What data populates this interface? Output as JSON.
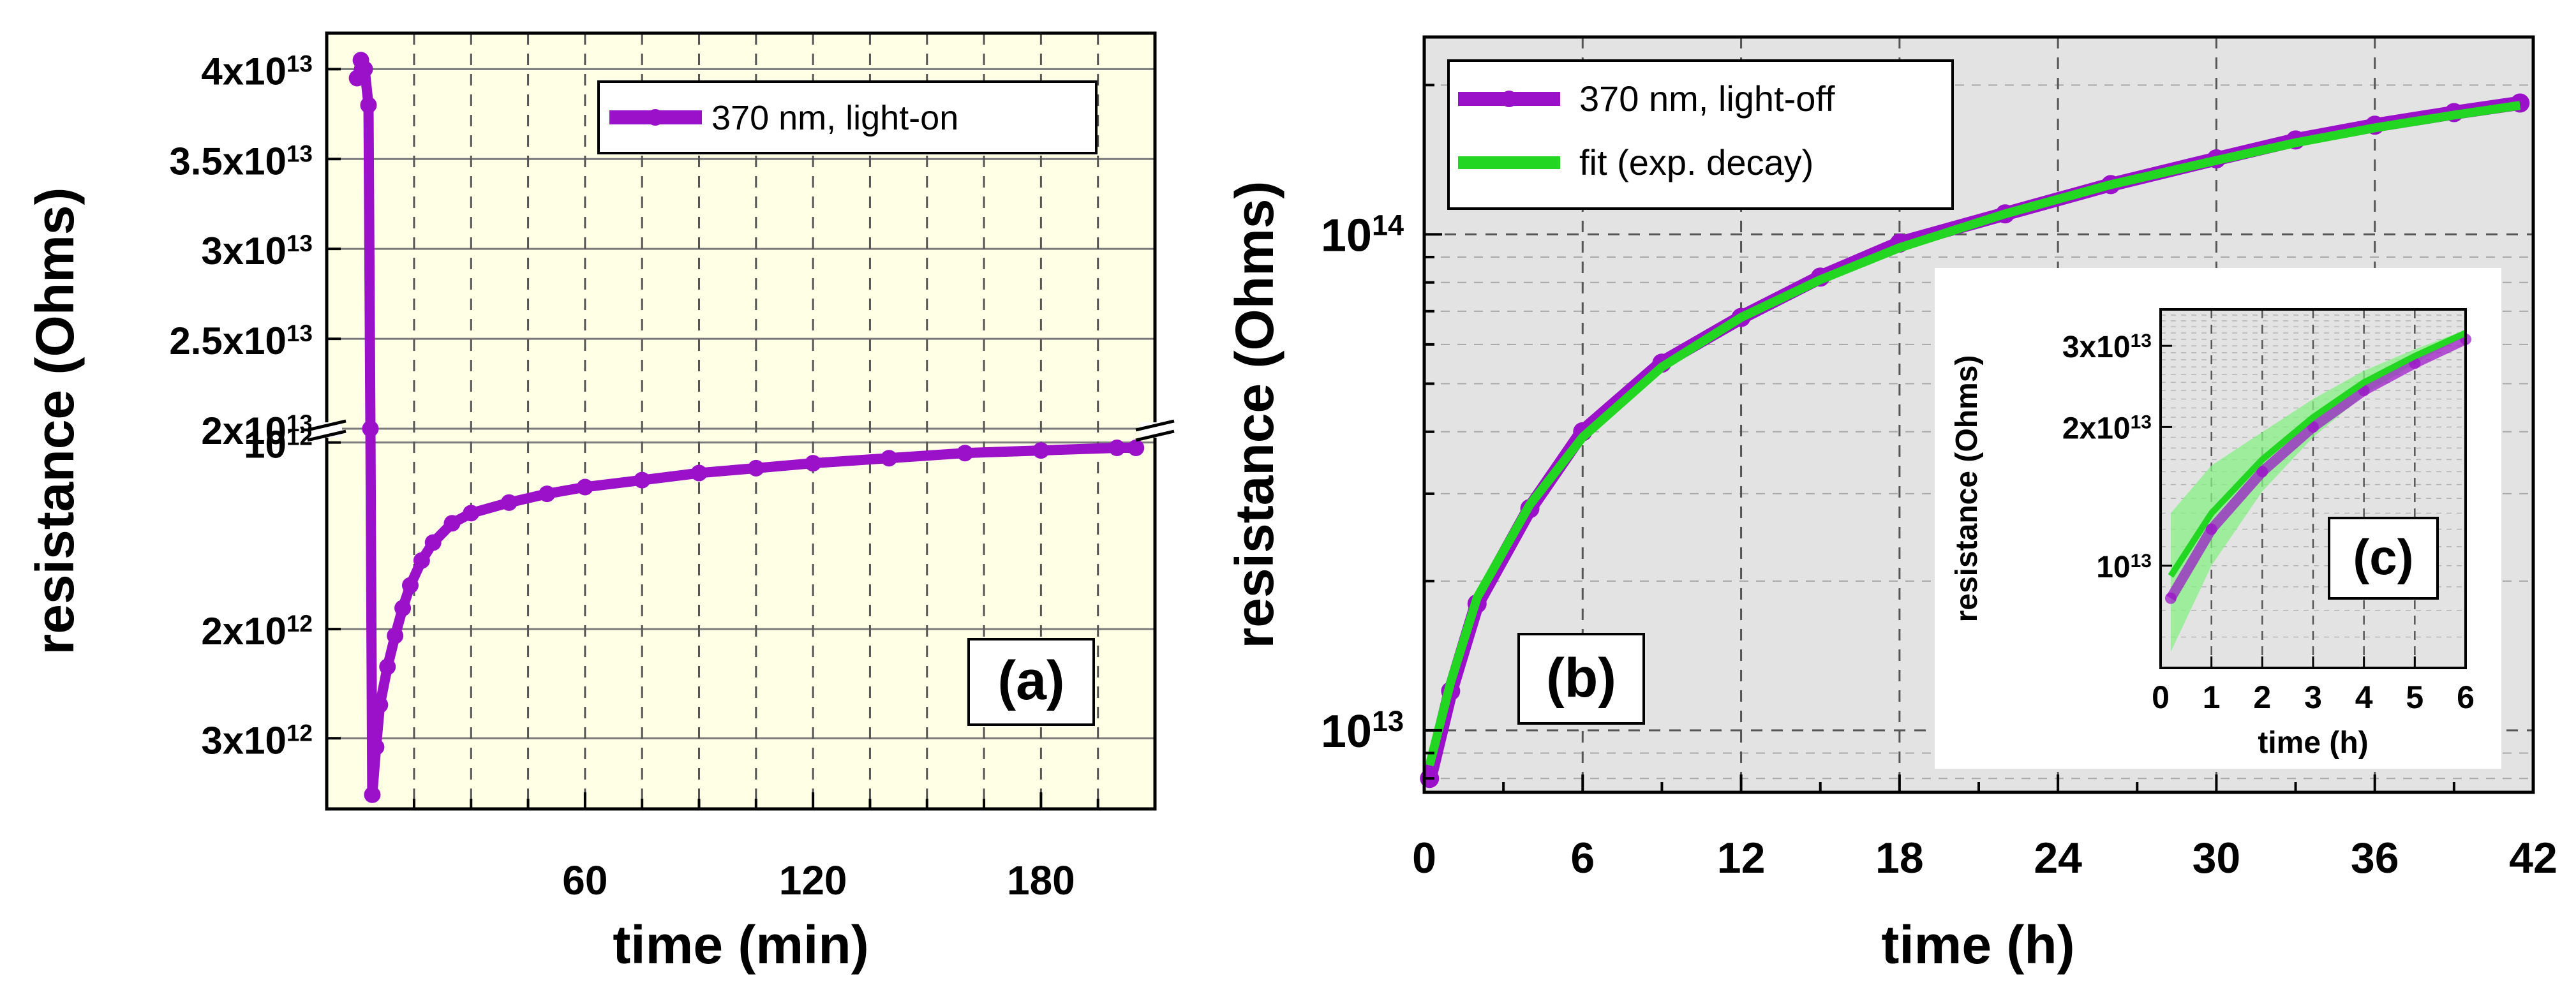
{
  "colors": {
    "data": "#9B10C9",
    "fit": "#22D622",
    "band": "#86F086",
    "bg_a": "#FFFFE5",
    "bg_b": "#E3E3E3",
    "inset_bg": "#FFFFFF"
  },
  "chart_data": [
    {
      "id": "a",
      "type": "scatter",
      "panel_label": "(a)",
      "xlabel": "time (min)",
      "ylabel": "resistance (Ohms)",
      "y_scale": "log, broken axis",
      "xlim": [
        -8,
        210
      ],
      "upper_ylim": [
        20000000000000,
        42000000000000
      ],
      "lower_ylim": [
        950000000000,
        3900000000000
      ],
      "x_ticks": [
        60,
        120,
        180
      ],
      "x_tick_labels": [
        "60",
        "120",
        "180"
      ],
      "upper_ticks": [
        {
          "value": 40000000000000,
          "mant": "4x10",
          "exp": "13"
        },
        {
          "value": 35000000000000,
          "mant": "3.5x10",
          "exp": "13"
        },
        {
          "value": 30000000000000,
          "mant": "3x10",
          "exp": "13"
        },
        {
          "value": 25000000000000,
          "mant": "2.5x10",
          "exp": "13"
        },
        {
          "value": 20000000000000,
          "mant": "2x10",
          "exp": "13"
        }
      ],
      "lower_ticks": [
        {
          "value": 3000000000000,
          "mant": "3x10",
          "exp": "12"
        },
        {
          "value": 2000000000000,
          "mant": "2x10",
          "exp": "12"
        },
        {
          "value": 1000000000000,
          "mant": "10",
          "exp": "12"
        }
      ],
      "legend": [
        {
          "label": "370 nm, light-on",
          "style": "line+marker"
        }
      ],
      "legend_position": "top-right",
      "series": [
        {
          "name": "370 nm, light-on",
          "x": [
            0,
            1,
            2,
            3,
            3.5,
            4,
            5,
            6,
            8,
            10,
            12,
            14,
            17,
            20,
            25,
            30,
            40,
            50,
            60,
            75,
            90,
            105,
            120,
            140,
            160,
            180,
            200,
            205
          ],
          "y": [
            39500000000000,
            40500000000000,
            40000000000000,
            38000000000000,
            20000000000000,
            3700000000000,
            3100000000000,
            2650000000000,
            2300000000000,
            2050000000000,
            1850000000000,
            1700000000000,
            1550000000000,
            1450000000000,
            1350000000000,
            1300000000000,
            1250000000000,
            1210000000000,
            1180000000000,
            1150000000000,
            1120000000000,
            1100000000000,
            1080000000000,
            1060000000000,
            1040000000000,
            1030000000000,
            1020000000000,
            1020000000000
          ]
        }
      ]
    },
    {
      "id": "b",
      "type": "line",
      "panel_label": "(b)",
      "xlabel": "time (h)",
      "ylabel": "resistance (Ohms)",
      "y_scale": "log",
      "xlim": [
        0,
        42
      ],
      "ylim": [
        7500000000000,
        250000000000000
      ],
      "x_ticks": [
        0,
        6,
        12,
        18,
        24,
        30,
        36,
        42
      ],
      "x_tick_labels": [
        "0",
        "6",
        "12",
        "18",
        "24",
        "30",
        "36",
        "42"
      ],
      "y_ticks": [
        {
          "value": 10000000000000,
          "mant": "10",
          "exp": "13"
        },
        {
          "value": 100000000000000,
          "mant": "10",
          "exp": "14"
        }
      ],
      "legend": [
        {
          "label": "370 nm, light-off",
          "style": "line+marker"
        },
        {
          "label": "fit (exp. decay)",
          "style": "line"
        }
      ],
      "legend_position": "top-left",
      "series": [
        {
          "name": "370 nm, light-off",
          "x": [
            0.2,
            1,
            2,
            4,
            6,
            9,
            12,
            15,
            18,
            22,
            26,
            30,
            33,
            36,
            39,
            41.5
          ],
          "y": [
            8000000000000,
            12000000000000,
            18000000000000,
            28000000000000,
            40000000000000,
            55000000000000,
            68000000000000,
            82000000000000,
            96000000000000,
            110000000000000,
            126000000000000,
            142000000000000,
            155000000000000,
            166000000000000,
            176000000000000,
            184000000000000
          ]
        },
        {
          "name": "fit (exp. decay)",
          "x": [
            0.2,
            1,
            2,
            4,
            6,
            9,
            12,
            15,
            18,
            22,
            26,
            30,
            33,
            36,
            39,
            41.5
          ],
          "y": [
            8500000000000,
            12500000000000,
            18500000000000,
            28500000000000,
            39000000000000,
            54000000000000,
            68000000000000,
            81000000000000,
            94000000000000,
            110000000000000,
            126000000000000,
            141000000000000,
            153000000000000,
            164000000000000,
            174000000000000,
            182000000000000
          ]
        }
      ]
    },
    {
      "id": "c",
      "type": "line",
      "panel_label": "(c)",
      "inset_of": "b",
      "xlabel": "time (h)",
      "ylabel": "resistance (Ohms)",
      "y_scale": "log",
      "xlim": [
        0,
        6
      ],
      "ylim": [
        6000000000000,
        36000000000000
      ],
      "x_ticks": [
        0,
        1,
        2,
        3,
        4,
        5,
        6
      ],
      "x_tick_labels": [
        "0",
        "1",
        "2",
        "3",
        "4",
        "5",
        "6"
      ],
      "y_ticks": [
        {
          "value": 30000000000000,
          "mant": "3x10",
          "exp": "13"
        },
        {
          "value": 20000000000000,
          "mant": "2x10",
          "exp": "13"
        },
        {
          "value": 10000000000000,
          "mant": "10",
          "exp": "13"
        }
      ],
      "series": [
        {
          "name": "370 nm, light-off",
          "x": [
            0.2,
            1,
            2,
            3,
            4,
            5,
            6
          ],
          "y": [
            8500000000000,
            12000000000000,
            16000000000000,
            20000000000000,
            24000000000000,
            27500000000000,
            31000000000000
          ]
        },
        {
          "name": "fit (exp. decay)",
          "x": [
            0.2,
            1,
            2,
            3,
            4,
            5,
            6
          ],
          "y": [
            9500000000000,
            13000000000000,
            17000000000000,
            21000000000000,
            25000000000000,
            28500000000000,
            32000000000000
          ]
        }
      ],
      "confidence_band": {
        "x": [
          0.2,
          1,
          2,
          3,
          4,
          5,
          6
        ],
        "lower": [
          6500000000000,
          10000000000000,
          14500000000000,
          19000000000000,
          23500000000000,
          27500000000000,
          31500000000000
        ],
        "upper": [
          13000000000000,
          16500000000000,
          19500000000000,
          23000000000000,
          26500000000000,
          29500000000000,
          32500000000000
        ]
      }
    }
  ]
}
